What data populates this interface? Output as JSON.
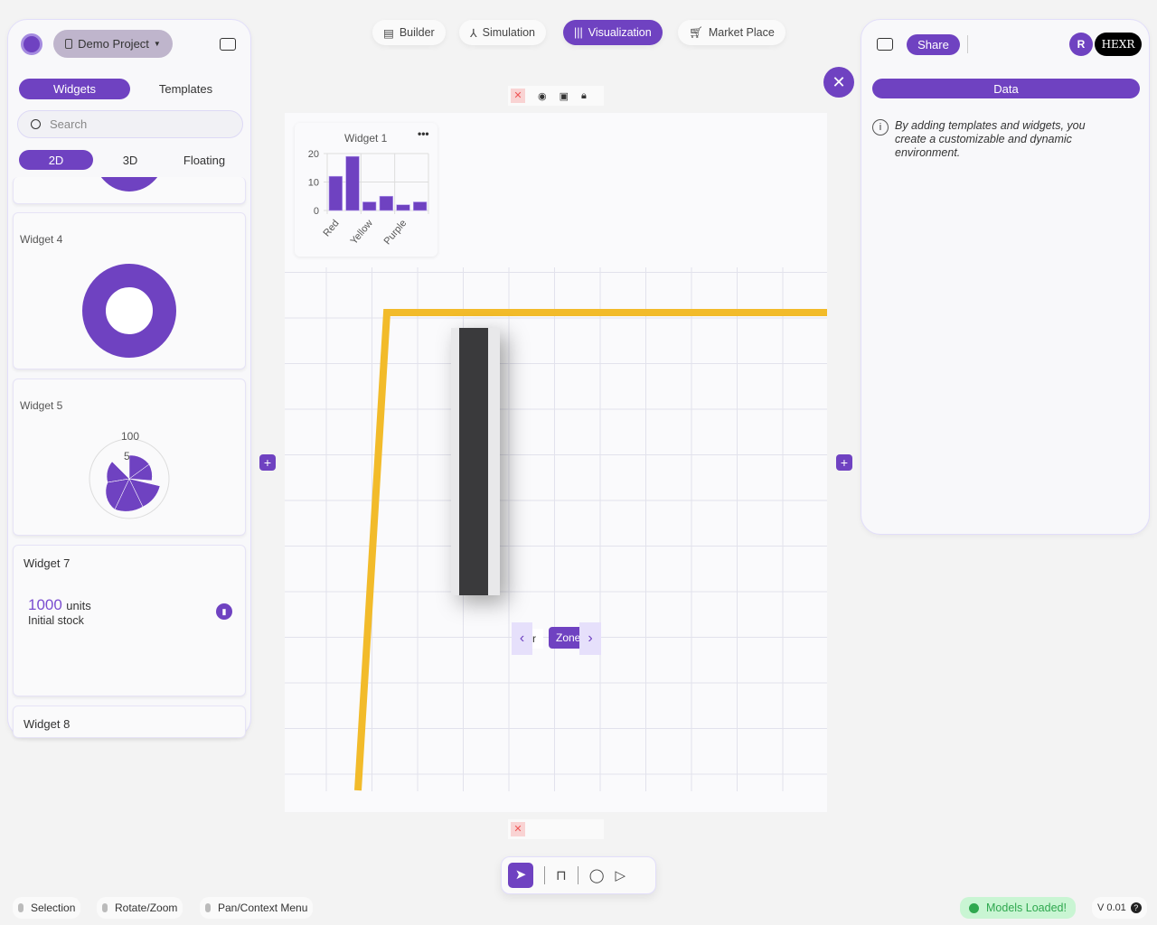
{
  "left_panel": {
    "project_name": "Demo Project",
    "tabs": [
      {
        "label": "Widgets",
        "active": true
      },
      {
        "label": "Templates",
        "active": false
      }
    ],
    "search_placeholder": "Search",
    "modes": [
      {
        "label": "2D",
        "active": true
      },
      {
        "label": "3D",
        "active": false
      },
      {
        "label": "Floating",
        "active": false
      }
    ],
    "widgets": [
      {
        "title": "Widget 4"
      },
      {
        "title": "Widget 5",
        "ticks": [
          "100",
          "5"
        ]
      },
      {
        "title": "Widget 7",
        "value": "1000",
        "unit": "units",
        "caption": "Initial stock"
      },
      {
        "title": "Widget 8"
      }
    ]
  },
  "top_nav": [
    {
      "label": "Builder",
      "icon": "builder-icon"
    },
    {
      "label": "Simulation",
      "icon": "simulation-icon"
    },
    {
      "label": "Visualization",
      "icon": "visualization-icon",
      "active": true
    },
    {
      "label": "Market Place",
      "icon": "cart-icon"
    }
  ],
  "canvas": {
    "zone_label": "Zone",
    "zone_prev_label": "r"
  },
  "chart_data": {
    "type": "bar",
    "title": "Widget 1",
    "categories": [
      "Red",
      "",
      "Yellow",
      "",
      "Purple",
      ""
    ],
    "values": [
      12,
      19,
      3,
      5,
      2,
      3
    ],
    "yticks": [
      "20",
      "10",
      "0"
    ],
    "ylim": [
      0,
      20
    ],
    "grid": true,
    "color": "#6f42c1"
  },
  "right_panel": {
    "share_label": "Share",
    "avatar_initial": "R",
    "logo_text": "HEXR",
    "data_tab": "Data",
    "info_text": "By adding templates and widgets, you create a customizable and dynamic environment."
  },
  "footer": {
    "hints": [
      "Selection",
      "Rotate/Zoom",
      "Pan/Context Menu"
    ],
    "status": "Models Loaded!",
    "version": "V 0.01"
  },
  "colors": {
    "accent": "#6f42c1",
    "path": "#f2bb2a",
    "success": "#2fa84f"
  }
}
